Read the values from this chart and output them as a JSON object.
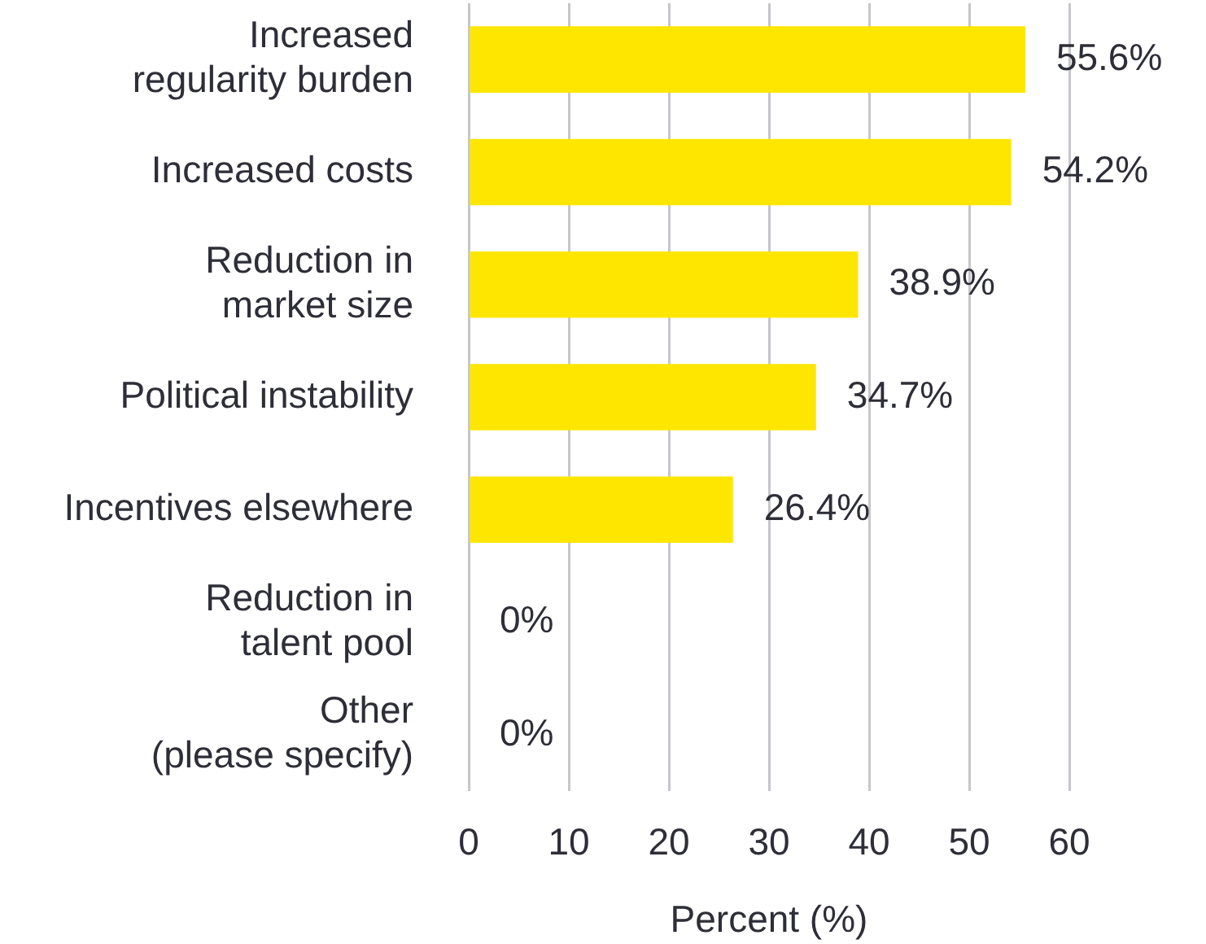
{
  "chart_data": {
    "type": "bar",
    "orientation": "horizontal",
    "categories": [
      "Increased\nregularity burden",
      "Increased costs",
      "Reduction in\nmarket size",
      "Political instability",
      "Incentives elsewhere",
      "Reduction in\ntalent pool",
      "Other\n(please specify)"
    ],
    "values": [
      55.6,
      54.2,
      38.9,
      34.7,
      26.4,
      0,
      0
    ],
    "color": "#ffe600",
    "value_labels": [
      "55.6%",
      "54.2%",
      "38.9%",
      "34.7%",
      "26.4%",
      "0%",
      "0%"
    ],
    "xlabel": "Percent (%)",
    "xlim": [
      0,
      60
    ],
    "xticks": [
      0,
      10,
      20,
      30,
      40,
      50,
      60
    ],
    "grid": "x"
  }
}
